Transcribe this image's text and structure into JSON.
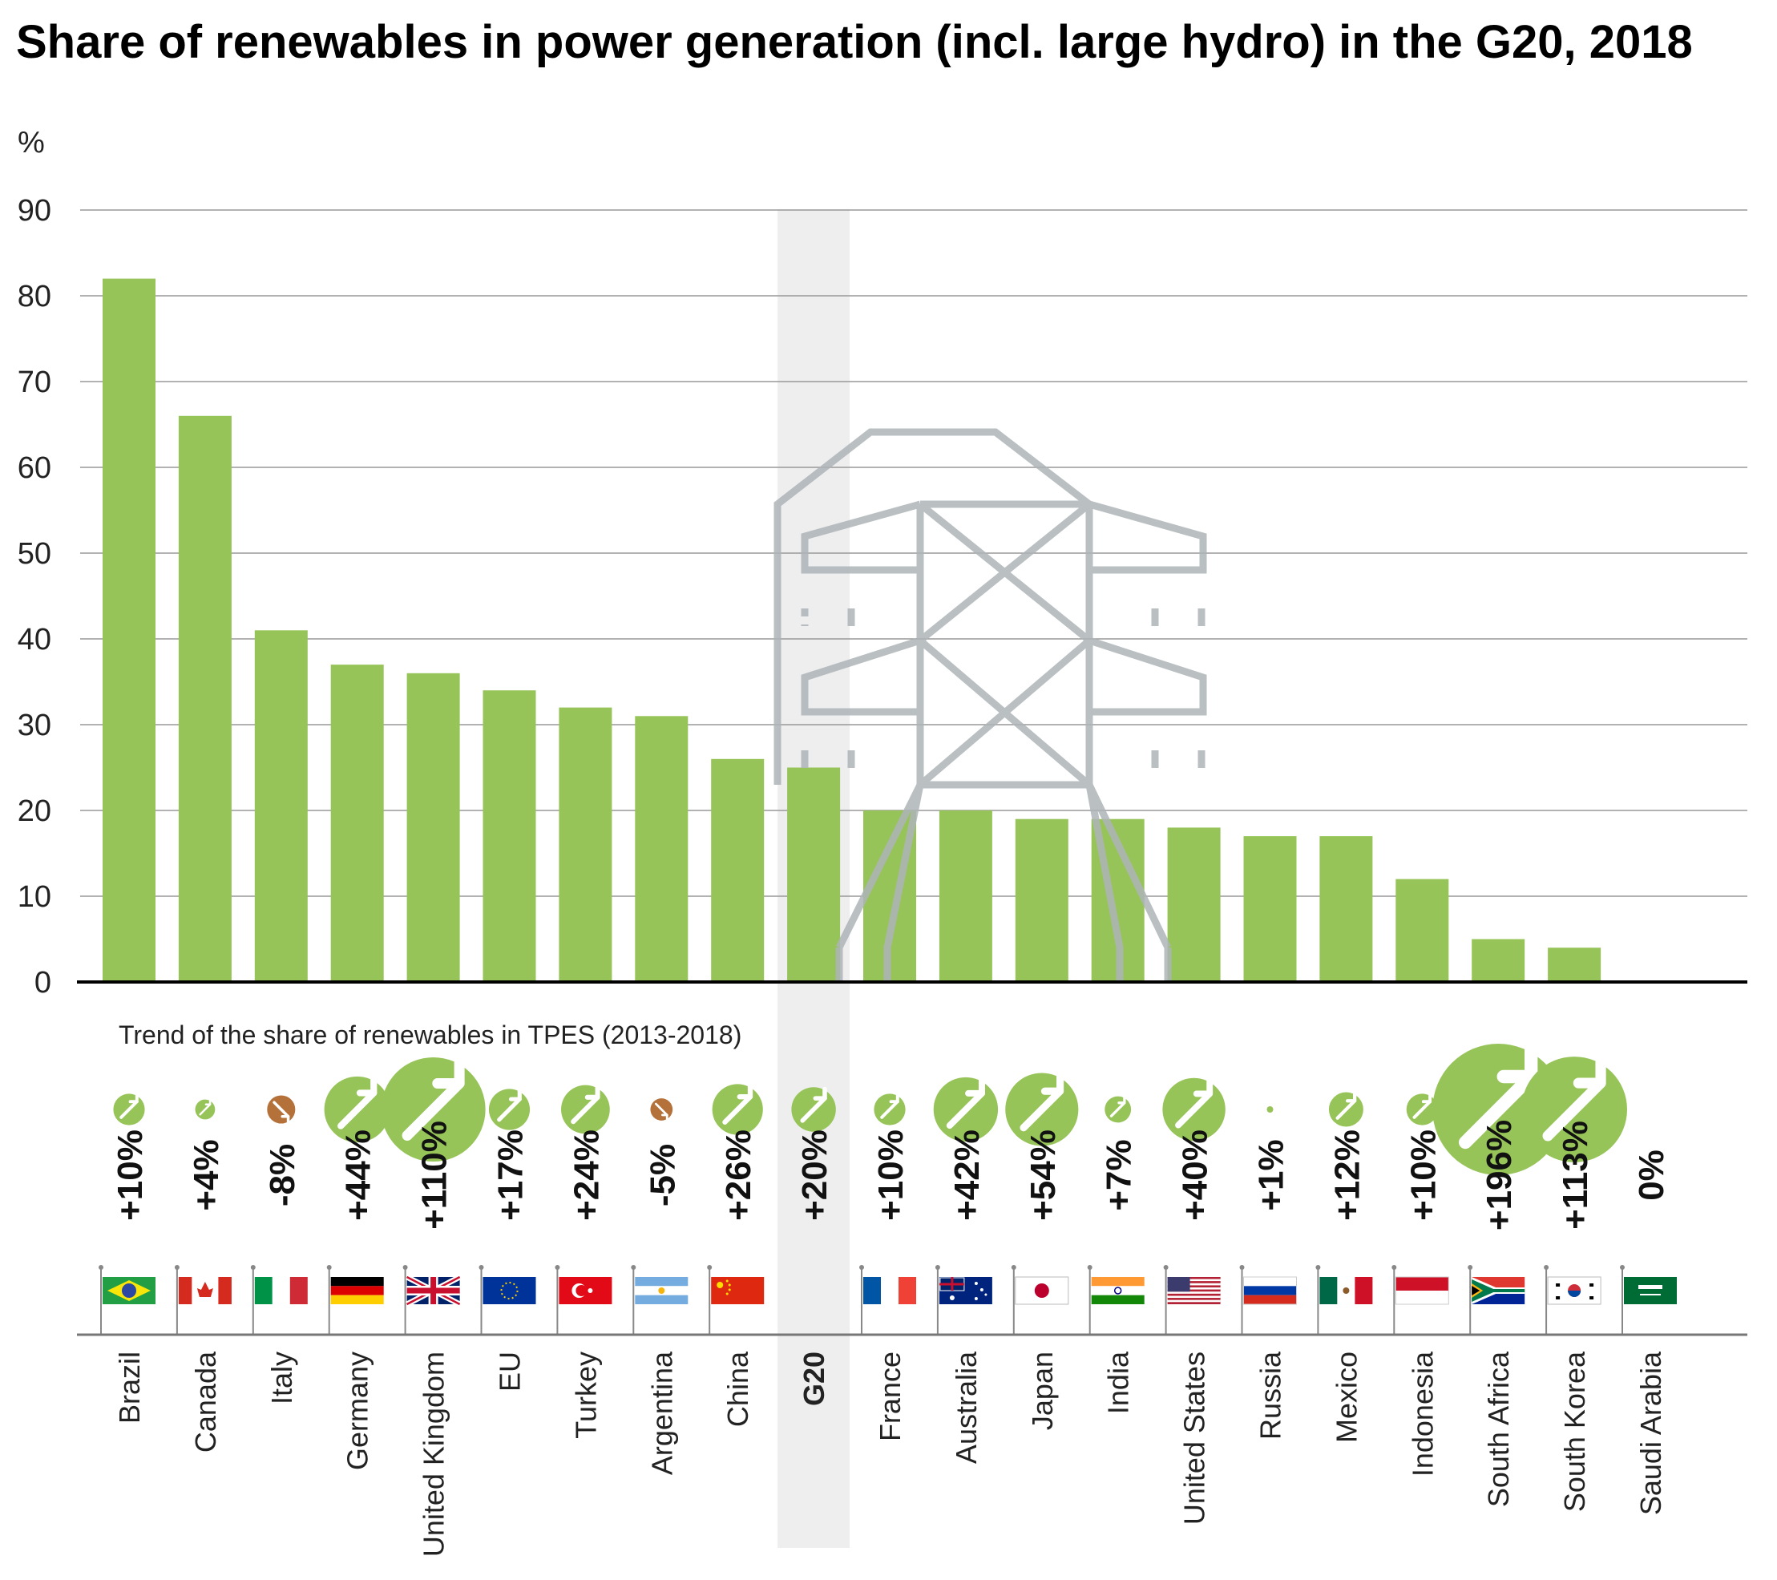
{
  "title": "Share of renewables in power generation (incl. large hydro) in the G20, 2018",
  "colors": {
    "bar": "#97c459",
    "arrow_up": "#97c459",
    "arrow_down": "#b5713a",
    "highlight": "#eeeeee",
    "grid": "#999999",
    "pylon": "#b3b8bb"
  },
  "chart_data": {
    "type": "bar",
    "title": "Share of renewables in power generation (incl. large hydro) in the G20, 2018",
    "ylabel": "%",
    "ylim": [
      0,
      90
    ],
    "yticks": [
      0,
      10,
      20,
      30,
      40,
      50,
      60,
      70,
      80,
      90
    ],
    "grid": true,
    "highlighted_category": "G20",
    "categories": [
      "Brazil",
      "Canada",
      "Italy",
      "Germany",
      "United Kingdom",
      "EU",
      "Turkey",
      "Argentina",
      "China",
      "G20",
      "France",
      "Australia",
      "Japan",
      "India",
      "United States",
      "Russia",
      "Mexico",
      "Indonesia",
      "South Africa",
      "South Korea",
      "Saudi Arabia"
    ],
    "values": [
      82,
      66,
      41,
      37,
      36,
      34,
      32,
      31,
      26,
      25,
      20,
      20,
      19,
      19,
      18,
      17,
      17,
      12,
      5,
      4,
      0
    ],
    "trend_title": "Trend of the share of renewables in TPES (2013-2018)",
    "trend_labels": [
      "+10%",
      "+4%",
      "-8%",
      "+44%",
      "+110%",
      "+17%",
      "+24%",
      "-5%",
      "+26%",
      "+20%",
      "+10%",
      "+42%",
      "+54%",
      "+7%",
      "+40%",
      "+1%",
      "+12%",
      "+10%",
      "+196%",
      "+113%",
      "0%"
    ],
    "trend_values": [
      10,
      4,
      -8,
      44,
      110,
      17,
      24,
      -5,
      26,
      20,
      10,
      42,
      54,
      7,
      40,
      1,
      12,
      10,
      196,
      113,
      0
    ],
    "flags": [
      "brazil-flag",
      "canada-flag",
      "italy-flag",
      "germany-flag",
      "uk-flag",
      "eu-flag",
      "turkey-flag",
      "argentina-flag",
      "china-flag",
      "",
      "france-flag",
      "australia-flag",
      "japan-flag",
      "india-flag",
      "usa-flag",
      "russia-flag",
      "mexico-flag",
      "indonesia-flag",
      "south-africa-flag",
      "south-korea-flag",
      "saudi-arabia-flag"
    ]
  }
}
